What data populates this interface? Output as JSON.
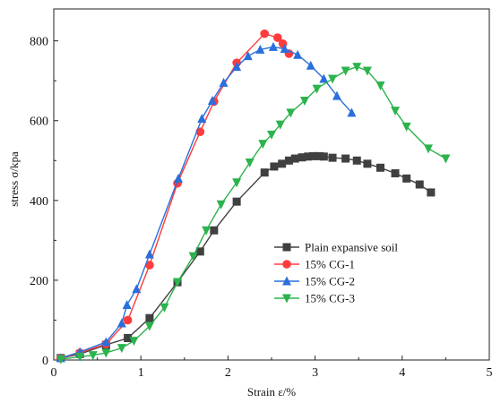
{
  "chart_data": {
    "type": "line",
    "title": "",
    "xlabel": "Strain ε/%",
    "ylabel": "stress σ/kpa",
    "xlim": [
      0,
      5
    ],
    "ylim": [
      0,
      880
    ],
    "xticks": [
      0,
      1,
      2,
      3,
      4,
      5
    ],
    "yticks": [
      0,
      200,
      400,
      600,
      800
    ],
    "legend_position": "center-right",
    "grid": false,
    "series": [
      {
        "name": "Plain expansive soil",
        "color": "#404040",
        "marker": "square",
        "points": [
          [
            0.08,
            5
          ],
          [
            0.3,
            15
          ],
          [
            0.6,
            38
          ],
          [
            0.85,
            55
          ],
          [
            1.1,
            105
          ],
          [
            1.42,
            195
          ],
          [
            1.68,
            272
          ],
          [
            1.84,
            325
          ],
          [
            2.1,
            397
          ],
          [
            2.42,
            470
          ],
          [
            2.53,
            485
          ],
          [
            2.62,
            492
          ],
          [
            2.7,
            500
          ],
          [
            2.77,
            505
          ],
          [
            2.85,
            508
          ],
          [
            2.92,
            510
          ],
          [
            2.98,
            511
          ],
          [
            3.05,
            511
          ],
          [
            3.1,
            510
          ],
          [
            3.2,
            507
          ],
          [
            3.35,
            505
          ],
          [
            3.48,
            500
          ],
          [
            3.6,
            492
          ],
          [
            3.75,
            482
          ],
          [
            3.92,
            468
          ],
          [
            4.05,
            455
          ],
          [
            4.2,
            440
          ],
          [
            4.33,
            420
          ]
        ]
      },
      {
        "name": "15% CG-1",
        "color": "#ff3b3b",
        "marker": "circle",
        "points": [
          [
            0.08,
            5
          ],
          [
            0.3,
            18
          ],
          [
            0.6,
            40
          ],
          [
            0.85,
            100
          ],
          [
            1.1,
            238
          ],
          [
            1.42,
            443
          ],
          [
            1.68,
            572
          ],
          [
            1.84,
            648
          ],
          [
            2.1,
            745
          ],
          [
            2.42,
            818
          ],
          [
            2.57,
            808
          ],
          [
            2.63,
            793
          ],
          [
            2.7,
            768
          ]
        ]
      },
      {
        "name": "15% CG-2",
        "color": "#2a6fdb",
        "marker": "triangle-up",
        "points": [
          [
            0.08,
            5
          ],
          [
            0.3,
            20
          ],
          [
            0.6,
            45
          ],
          [
            0.78,
            92
          ],
          [
            0.84,
            138
          ],
          [
            0.95,
            178
          ],
          [
            1.1,
            265
          ],
          [
            1.43,
            455
          ],
          [
            1.7,
            605
          ],
          [
            1.82,
            650
          ],
          [
            1.95,
            695
          ],
          [
            2.1,
            735
          ],
          [
            2.23,
            762
          ],
          [
            2.37,
            778
          ],
          [
            2.52,
            785
          ],
          [
            2.65,
            780
          ],
          [
            2.8,
            765
          ],
          [
            2.95,
            738
          ],
          [
            3.1,
            705
          ],
          [
            3.25,
            662
          ],
          [
            3.42,
            620
          ]
        ]
      },
      {
        "name": "15% CG-3",
        "color": "#2cb34d",
        "marker": "triangle-down",
        "points": [
          [
            0.08,
            2
          ],
          [
            0.3,
            8
          ],
          [
            0.45,
            12
          ],
          [
            0.6,
            18
          ],
          [
            0.78,
            30
          ],
          [
            0.92,
            48
          ],
          [
            1.1,
            85
          ],
          [
            1.27,
            132
          ],
          [
            1.42,
            195
          ],
          [
            1.6,
            260
          ],
          [
            1.75,
            325
          ],
          [
            1.92,
            390
          ],
          [
            2.1,
            445
          ],
          [
            2.25,
            495
          ],
          [
            2.4,
            542
          ],
          [
            2.5,
            565
          ],
          [
            2.6,
            590
          ],
          [
            2.72,
            620
          ],
          [
            2.88,
            650
          ],
          [
            3.02,
            680
          ],
          [
            3.2,
            705
          ],
          [
            3.35,
            725
          ],
          [
            3.48,
            735
          ],
          [
            3.6,
            725
          ],
          [
            3.75,
            688
          ],
          [
            3.92,
            625
          ],
          [
            4.05,
            585
          ],
          [
            4.3,
            530
          ],
          [
            4.5,
            505
          ]
        ]
      }
    ]
  }
}
